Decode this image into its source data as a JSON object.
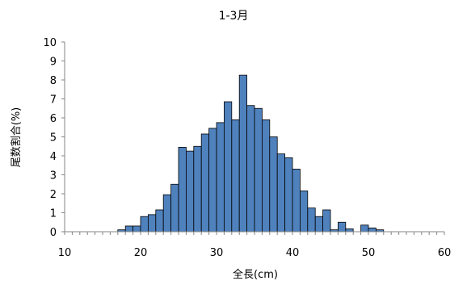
{
  "chart_data": {
    "type": "bar",
    "title": "1-3月",
    "xlabel": "全長(cm)",
    "ylabel": "尾数割合(%)",
    "xlim": [
      10,
      60
    ],
    "ylim": [
      0,
      10
    ],
    "x_ticks": [
      10,
      20,
      30,
      40,
      50,
      60
    ],
    "y_ticks": [
      0,
      1,
      2,
      3,
      4,
      5,
      6,
      7,
      8,
      9,
      10
    ],
    "bin_width": 1,
    "bar_color": "#4F81BD",
    "grid": false,
    "legend": "none",
    "bins": [
      {
        "x": 17,
        "y": 0.1
      },
      {
        "x": 18,
        "y": 0.3
      },
      {
        "x": 19,
        "y": 0.3
      },
      {
        "x": 20,
        "y": 0.8
      },
      {
        "x": 21,
        "y": 0.9
      },
      {
        "x": 22,
        "y": 1.15
      },
      {
        "x": 23,
        "y": 1.95
      },
      {
        "x": 24,
        "y": 2.5
      },
      {
        "x": 25,
        "y": 4.45
      },
      {
        "x": 26,
        "y": 4.25
      },
      {
        "x": 27,
        "y": 4.5
      },
      {
        "x": 28,
        "y": 5.15
      },
      {
        "x": 29,
        "y": 5.45
      },
      {
        "x": 30,
        "y": 5.75
      },
      {
        "x": 31,
        "y": 6.85
      },
      {
        "x": 32,
        "y": 5.9
      },
      {
        "x": 33,
        "y": 8.25
      },
      {
        "x": 34,
        "y": 6.65
      },
      {
        "x": 35,
        "y": 6.5
      },
      {
        "x": 36,
        "y": 5.9
      },
      {
        "x": 37,
        "y": 5.0
      },
      {
        "x": 38,
        "y": 4.1
      },
      {
        "x": 39,
        "y": 3.9
      },
      {
        "x": 40,
        "y": 3.3
      },
      {
        "x": 41,
        "y": 2.15
      },
      {
        "x": 42,
        "y": 1.25
      },
      {
        "x": 43,
        "y": 0.8
      },
      {
        "x": 44,
        "y": 1.15
      },
      {
        "x": 45,
        "y": 0.1
      },
      {
        "x": 46,
        "y": 0.5
      },
      {
        "x": 47,
        "y": 0.15
      },
      {
        "x": 48,
        "y": 0.0
      },
      {
        "x": 49,
        "y": 0.35
      },
      {
        "x": 50,
        "y": 0.2
      },
      {
        "x": 51,
        "y": 0.1
      }
    ]
  }
}
